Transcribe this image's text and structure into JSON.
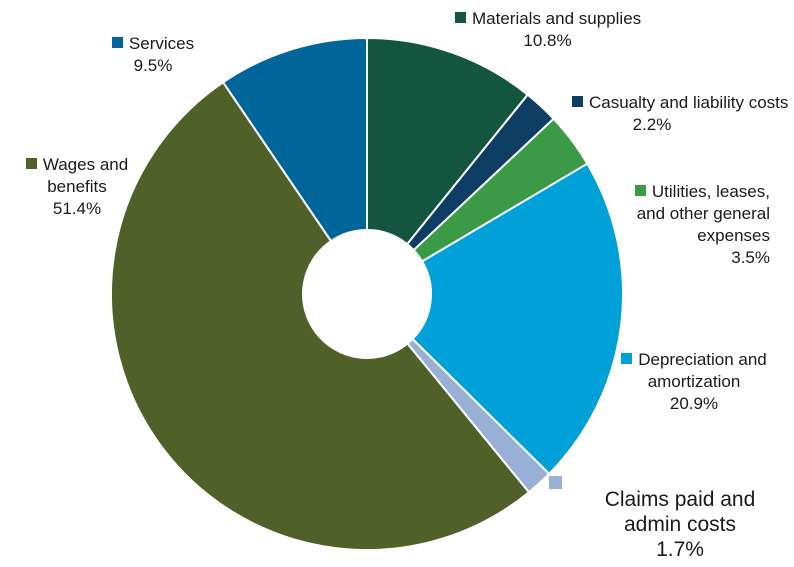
{
  "chart_data": {
    "type": "pie",
    "donut": true,
    "start_angle_deg": 0,
    "direction": "clockwise",
    "slices": [
      {
        "label": "Materials and supplies",
        "value": 10.8,
        "value_label": "10.8%",
        "color": "#14553f"
      },
      {
        "label": "Casualty and liability costs",
        "value": 2.2,
        "value_label": "2.2%",
        "color": "#0e3d63"
      },
      {
        "label": "Utilities, leases, and other general expenses",
        "value": 3.5,
        "value_label": "3.5%",
        "color": "#3a9a45"
      },
      {
        "label": "Depreciation and amortization",
        "value": 20.9,
        "value_label": "20.9%",
        "color": "#00a0d8"
      },
      {
        "label": "Claims paid and admin costs",
        "value": 1.7,
        "value_label": "1.7%",
        "color": "#98b0d6"
      },
      {
        "label": "Wages and benefits",
        "value": 51.4,
        "value_label": "51.4%",
        "color": "#4f6129"
      },
      {
        "label": "Services",
        "value": 9.5,
        "value_label": "9.5%",
        "color": "#006598"
      }
    ]
  }
}
